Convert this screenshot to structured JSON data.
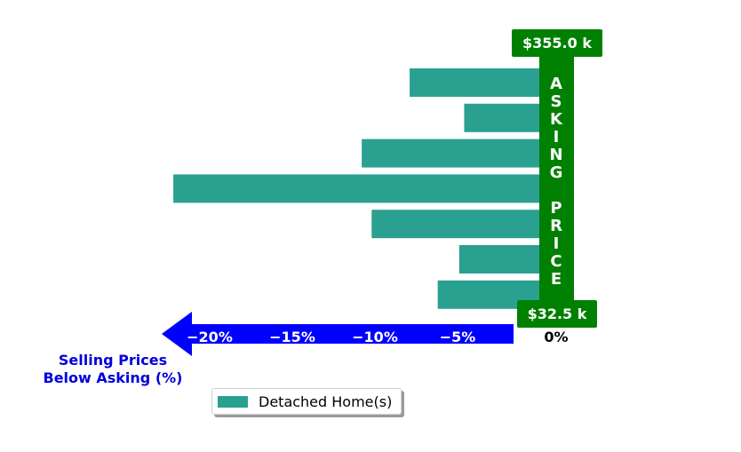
{
  "chart_data": {
    "type": "bar",
    "orientation": "horizontal",
    "xlim": [
      -23.5,
      0
    ],
    "x_ticks": [
      {
        "value": -20,
        "label": "−20%"
      },
      {
        "value": -15,
        "label": "−15%"
      },
      {
        "value": -10,
        "label": "−10%"
      },
      {
        "value": -5,
        "label": "−5%"
      },
      {
        "value": 0,
        "label": "0%"
      }
    ],
    "series": [
      {
        "name": "Detached Home(s)",
        "values": [
          -7.9,
          -4.6,
          -10.8,
          -22.2,
          -10.2,
          -4.9,
          -6.2
        ]
      }
    ],
    "xlabel": "Selling Prices\nBelow Asking (%)",
    "asking_price_label": "ASKING PRICE",
    "top_price_label": "$355.0 k",
    "bottom_price_label": "$32.5 k",
    "legend": {
      "entry": "Detached Home(s)",
      "placement": "bottom"
    },
    "grid": false,
    "colors": {
      "bar": "#2aa090",
      "arrow": "#0000ff",
      "asking_band": "#008000",
      "axis_label": "#0000dd"
    }
  }
}
